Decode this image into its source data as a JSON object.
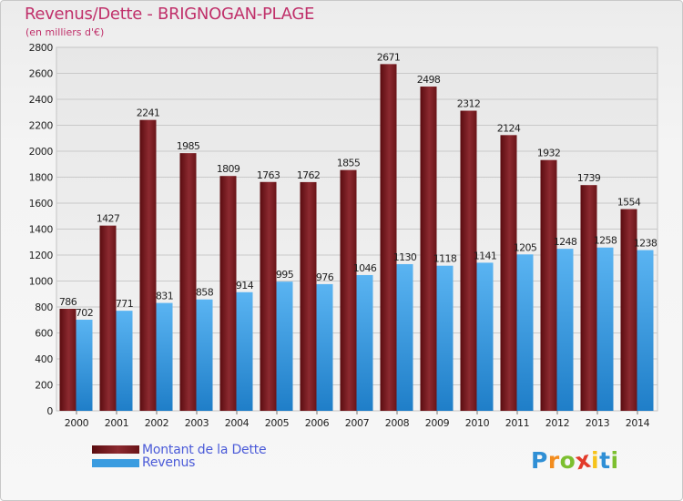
{
  "chart_data": {
    "type": "bar",
    "title": "Revenus/Dette - BRIGNOGAN-PLAGE",
    "subtitle": "(en milliers d'€)",
    "categories": [
      "2000",
      "2001",
      "2002",
      "2003",
      "2004",
      "2005",
      "2006",
      "2007",
      "2008",
      "2009",
      "2010",
      "2011",
      "2012",
      "2013",
      "2014"
    ],
    "series": [
      {
        "name": "Montant de la Dette",
        "color": "#7a1a1e",
        "values": [
          786,
          1427,
          2241,
          1985,
          1809,
          1763,
          1762,
          1855,
          2671,
          2498,
          2312,
          2124,
          1932,
          1739,
          1554
        ]
      },
      {
        "name": "Revenus",
        "color": "#3a9ce0",
        "values": [
          702,
          771,
          831,
          858,
          914,
          995,
          976,
          1046,
          1130,
          1118,
          1141,
          1205,
          1248,
          1258,
          1238
        ]
      }
    ],
    "ylim": [
      0,
      2800
    ],
    "yticks": [
      0,
      200,
      400,
      600,
      800,
      1000,
      1200,
      1400,
      1600,
      1800,
      2000,
      2200,
      2400,
      2600,
      2800
    ],
    "grid": true,
    "legend_position": "bottom-left"
  },
  "logo": {
    "letters": [
      "P",
      "r",
      "o",
      "x",
      "i",
      "t",
      "i"
    ],
    "colors": [
      "#2f8fd5",
      "#f28c1e",
      "#7cbf2f",
      "#e23a2a",
      "#f6c31b",
      "#2f8fd5",
      "#7cbf2f"
    ]
  }
}
